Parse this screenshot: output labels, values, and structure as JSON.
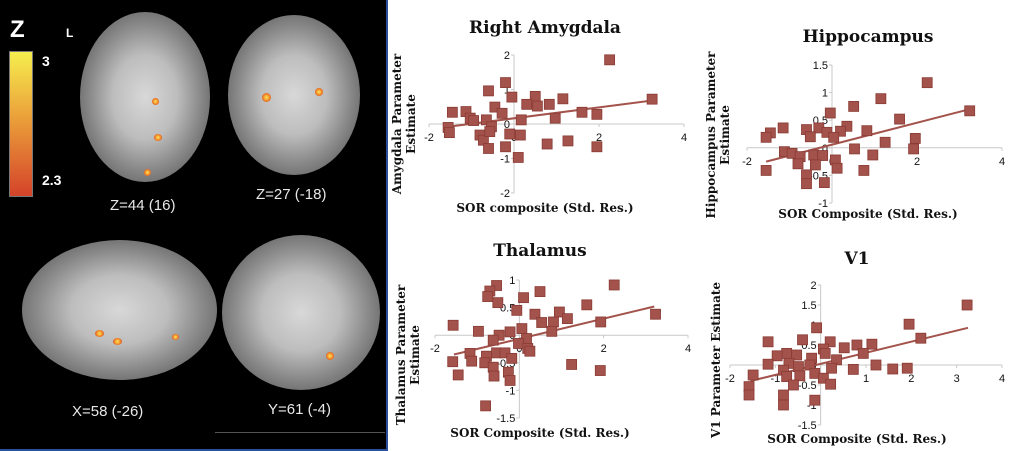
{
  "brain_panel": {
    "colorbar_title": "Z",
    "orientation_label": "L",
    "colorbar_max": "3",
    "colorbar_min": "2.3",
    "slices": [
      "Z=44 (16)",
      "Z=27 (-18)",
      "X=58 (-26)",
      "Y=61 (-4)"
    ]
  },
  "colors": {
    "marker": "#a3534b",
    "marker_edge": "#8a3b34",
    "trendline": "#a3534b"
  },
  "chart_data": [
    {
      "type": "scatter",
      "title": "Right Amygdala",
      "xlabel": "SOR composite (Std. Res.)",
      "ylabel": [
        "Amygdala Parameter",
        "Estimate"
      ],
      "xlim": [
        -2,
        4
      ],
      "ylim": [
        -2,
        2
      ],
      "xticks": [
        -2,
        0,
        2,
        4
      ],
      "yticks": [
        -2,
        -1,
        0,
        1,
        2
      ],
      "points": [
        [
          2.25,
          1.86
        ],
        [
          -0.2,
          1.2
        ],
        [
          -0.6,
          0.96
        ],
        [
          3.25,
          0.72
        ],
        [
          1.15,
          0.73
        ],
        [
          0.5,
          0.8
        ],
        [
          -0.05,
          0.78
        ],
        [
          0.83,
          0.57
        ],
        [
          0.3,
          0.57
        ],
        [
          0.55,
          0.52
        ],
        [
          -1.45,
          0.34
        ],
        [
          -1.13,
          0.36
        ],
        [
          1.6,
          0.34
        ],
        [
          1.95,
          0.28
        ],
        [
          -0.45,
          0.49
        ],
        [
          -0.28,
          0.31
        ],
        [
          -1.03,
          0.17
        ],
        [
          0.97,
          0.17
        ],
        [
          0.17,
          0.12
        ],
        [
          -0.95,
          0.1
        ],
        [
          -1.55,
          -0.1
        ],
        [
          -1.52,
          -0.25
        ],
        [
          -0.65,
          0.12
        ],
        [
          -0.53,
          -0.08
        ],
        [
          -0.8,
          -0.32
        ],
        [
          -0.72,
          -0.47
        ],
        [
          -0.57,
          -0.22
        ],
        [
          -0.1,
          -0.29
        ],
        [
          0.15,
          -0.32
        ],
        [
          0.78,
          -0.58
        ],
        [
          1.27,
          -0.49
        ],
        [
          1.95,
          -0.66
        ],
        [
          -0.6,
          -0.71
        ],
        [
          -0.2,
          -0.66
        ],
        [
          0.1,
          -0.97
        ]
      ],
      "trendline": [
        [
          -1.55,
          -0.08
        ],
        [
          3.25,
          0.68
        ]
      ]
    },
    {
      "type": "scatter",
      "title": "Hippocampus",
      "xlabel": "SOR Composite (Std. Res.)",
      "ylabel": [
        "Hippocampus Parameter",
        "Estimate"
      ],
      "xlim": [
        -2,
        4
      ],
      "ylim": [
        -1,
        1.5
      ],
      "xticks": [
        -2,
        0,
        2,
        4
      ],
      "yticks": [
        -1,
        -0.5,
        0,
        0.5,
        1,
        1.5
      ],
      "points": [
        [
          2.24,
          1.18
        ],
        [
          1.15,
          0.89
        ],
        [
          0.51,
          0.75
        ],
        [
          -0.04,
          0.63
        ],
        [
          3.24,
          0.67
        ],
        [
          1.59,
          0.52
        ],
        [
          -1.15,
          0.36
        ],
        [
          -1.45,
          0.27
        ],
        [
          -1.55,
          0.19
        ],
        [
          -0.6,
          0.33
        ],
        [
          -0.31,
          0.36
        ],
        [
          -0.12,
          0.28
        ],
        [
          0.35,
          0.39
        ],
        [
          0.2,
          0.3
        ],
        [
          0.82,
          0.31
        ],
        [
          1.96,
          0.17
        ],
        [
          -0.51,
          0.2
        ],
        [
          0.04,
          0.19
        ],
        [
          1.25,
          0.1
        ],
        [
          1.92,
          -0.02
        ],
        [
          0.53,
          -0.02
        ],
        [
          -1.12,
          -0.07
        ],
        [
          -0.94,
          -0.1
        ],
        [
          -0.75,
          -0.16
        ],
        [
          -0.43,
          -0.13
        ],
        [
          -0.22,
          -0.14
        ],
        [
          0.08,
          -0.22
        ],
        [
          0.96,
          -0.13
        ],
        [
          -0.8,
          -0.29
        ],
        [
          -0.39,
          -0.31
        ],
        [
          0.12,
          -0.37
        ],
        [
          -1.55,
          -0.41
        ],
        [
          0.75,
          -0.41
        ],
        [
          -0.6,
          -0.49
        ],
        [
          -0.6,
          -0.65
        ],
        [
          -0.18,
          -0.63
        ]
      ],
      "trendline": [
        [
          -1.55,
          -0.25
        ],
        [
          3.24,
          0.7
        ]
      ]
    },
    {
      "type": "scatter",
      "title": "Thalamus",
      "xlabel": "SOR Composite (Std. Res.)",
      "ylabel": [
        "Thalamus Parameter",
        "Estimate"
      ],
      "xlim": [
        -2,
        4
      ],
      "ylim": [
        -1.5,
        1
      ],
      "xticks": [
        -2,
        0,
        2,
        4
      ],
      "yticks": [
        -1.5,
        -1,
        -0.5,
        0,
        0.5,
        1
      ],
      "points": [
        [
          -0.54,
          0.9
        ],
        [
          -0.7,
          0.8
        ],
        [
          -0.75,
          0.7
        ],
        [
          -0.51,
          0.59
        ],
        [
          2.25,
          0.91
        ],
        [
          0.49,
          0.79
        ],
        [
          0.1,
          0.68
        ],
        [
          1.6,
          0.55
        ],
        [
          -0.06,
          0.45
        ],
        [
          0.37,
          0.38
        ],
        [
          0.95,
          0.42
        ],
        [
          1.14,
          0.3
        ],
        [
          3.23,
          0.38
        ],
        [
          0.53,
          0.23
        ],
        [
          0.81,
          0.24
        ],
        [
          1.93,
          0.24
        ],
        [
          -1.57,
          0.18
        ],
        [
          -0.97,
          0.07
        ],
        [
          0.77,
          0.07
        ],
        [
          -0.22,
          0.06
        ],
        [
          0.06,
          0.12
        ],
        [
          -0.48,
          0
        ],
        [
          -0.62,
          -0.09
        ],
        [
          0.17,
          -0.06
        ],
        [
          -0.02,
          -0.15
        ],
        [
          0.2,
          -0.24
        ],
        [
          -1.17,
          -0.33
        ],
        [
          0.25,
          -0.29
        ],
        [
          -0.78,
          -0.38
        ],
        [
          -0.54,
          -0.32
        ],
        [
          -0.34,
          -0.32
        ],
        [
          -1.13,
          -0.47
        ],
        [
          -1.58,
          -0.48
        ],
        [
          -0.82,
          -0.5
        ],
        [
          -0.18,
          -0.42
        ],
        [
          1.24,
          -0.53
        ],
        [
          -0.62,
          -0.58
        ],
        [
          -0.26,
          -0.67
        ],
        [
          1.92,
          -0.64
        ],
        [
          -1.45,
          -0.72
        ],
        [
          -0.6,
          -0.74
        ],
        [
          -0.22,
          -0.82
        ],
        [
          -0.8,
          -1.28
        ]
      ],
      "trendline": [
        [
          -1.55,
          -0.35
        ],
        [
          3.2,
          0.52
        ]
      ]
    },
    {
      "type": "scatter",
      "title": "V1",
      "xlabel": "SOR Composite (Std. Res.)",
      "ylabel": [
        "V1 Parameter Estimate"
      ],
      "xlim": [
        -2,
        4
      ],
      "ylim": [
        -1.5,
        2
      ],
      "xticks": [
        -2,
        -1,
        0,
        1,
        2,
        3,
        4
      ],
      "yticks": [
        -1.5,
        -1,
        -0.5,
        0,
        0.5,
        1,
        1.5,
        2
      ],
      "points": [
        [
          3.23,
          1.5
        ],
        [
          1.95,
          1.02
        ],
        [
          2.21,
          0.67
        ],
        [
          -0.09,
          0.93
        ],
        [
          -0.4,
          0.63
        ],
        [
          -1.16,
          0.58
        ],
        [
          0.21,
          0.58
        ],
        [
          0.8,
          0.5
        ],
        [
          1.13,
          0.52
        ],
        [
          0.52,
          0.43
        ],
        [
          0.06,
          0.4
        ],
        [
          -0.75,
          0.29
        ],
        [
          -0.53,
          0.25
        ],
        [
          -0.96,
          0.23
        ],
        [
          0.94,
          0.29
        ],
        [
          0.1,
          0.29
        ],
        [
          0.35,
          0.13
        ],
        [
          -0.2,
          0.17
        ],
        [
          -1.16,
          0.02
        ],
        [
          -0.7,
          0.04
        ],
        [
          -0.49,
          -0.04
        ],
        [
          -0.24,
          0
        ],
        [
          1.22,
          0
        ],
        [
          0.24,
          -0.08
        ],
        [
          0.72,
          -0.11
        ],
        [
          1.59,
          -0.1
        ],
        [
          1.91,
          -0.08
        ],
        [
          -0.82,
          -0.13
        ],
        [
          -1.49,
          -0.25
        ],
        [
          -0.13,
          -0.21
        ],
        [
          -0.75,
          -0.29
        ],
        [
          -0.46,
          -0.27
        ],
        [
          0.06,
          -0.33
        ],
        [
          -1.58,
          -0.54
        ],
        [
          -0.6,
          -0.5
        ],
        [
          0.22,
          -0.48
        ],
        [
          -1.58,
          -0.75
        ],
        [
          -0.82,
          -0.75
        ],
        [
          -0.13,
          -0.88
        ],
        [
          -0.82,
          -1.0
        ]
      ],
      "trendline": [
        [
          -1.55,
          -0.4
        ],
        [
          3.25,
          0.93
        ]
      ]
    }
  ]
}
